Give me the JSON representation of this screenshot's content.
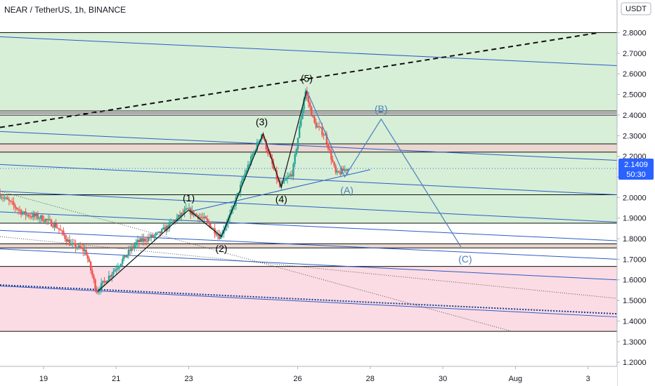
{
  "header": {
    "title": "NEAR / TetherUS, 1h, BINANCE",
    "quote_currency": "USDT"
  },
  "chart_data": {
    "type": "candlestick",
    "symbol": "NEAR / TetherUS",
    "interval": "1h",
    "exchange": "BINANCE",
    "current_price": "2.1409",
    "countdown": "50:30",
    "y_ticks": [
      "2.8000",
      "2.7000",
      "2.6000",
      "2.5000",
      "2.4000",
      "2.3000",
      "2.2000",
      "2.1000",
      "2.0000",
      "1.9000",
      "1.8000",
      "1.7000",
      "1.6000",
      "1.5000",
      "1.4000",
      "1.3000",
      "1.2000"
    ],
    "ylim": [
      1.18,
      2.87
    ],
    "x_ticks": [
      {
        "label": "19",
        "day": 19
      },
      {
        "label": "21",
        "day": 21
      },
      {
        "label": "23",
        "day": 23
      },
      {
        "label": "26",
        "day": 26
      },
      {
        "label": "28",
        "day": 28
      },
      {
        "label": "30",
        "day": 30
      },
      {
        "label": "Aug",
        "day": 32
      },
      {
        "label": "3",
        "day": 34
      }
    ],
    "xlim": [
      17.8,
      34.8
    ],
    "zones": [
      {
        "from": 2.42,
        "to": 2.8,
        "color": "#d7efd6"
      },
      {
        "from": 2.26,
        "to": 2.4,
        "color": "#d7efd6"
      },
      {
        "from": 2.22,
        "to": 2.26,
        "color": "#ead8d0"
      },
      {
        "from": 1.875,
        "to": 2.22,
        "color": "#d7efd6"
      },
      {
        "from": 1.755,
        "to": 1.775,
        "color": "#ead8d0"
      },
      {
        "from": 1.35,
        "to": 1.665,
        "color": "#fbdce4"
      }
    ],
    "horizontal_levels": [
      2.8,
      2.42,
      2.41,
      2.4,
      2.26,
      2.22,
      2.013,
      1.875,
      1.775,
      1.755,
      1.665,
      1.35
    ],
    "waves": [
      {
        "label": "(1)",
        "day": 23.0,
        "price": 1.94
      },
      {
        "label": "(2)",
        "day": 23.9,
        "price": 1.81
      },
      {
        "label": "(3)",
        "day": 25.05,
        "price": 2.31
      },
      {
        "label": "(4)",
        "day": 25.55,
        "price": 2.05
      },
      {
        "label": "(5)",
        "day": 26.25,
        "price": 2.52
      }
    ],
    "projection": [
      {
        "label": "(A)",
        "day": 27.3,
        "price": 2.1
      },
      {
        "label": "(B)",
        "day": 28.3,
        "price": 2.38
      },
      {
        "label": "(C)",
        "day": 30.5,
        "price": 1.76
      }
    ],
    "start_low": {
      "day": 20.5,
      "price": 1.545
    }
  }
}
